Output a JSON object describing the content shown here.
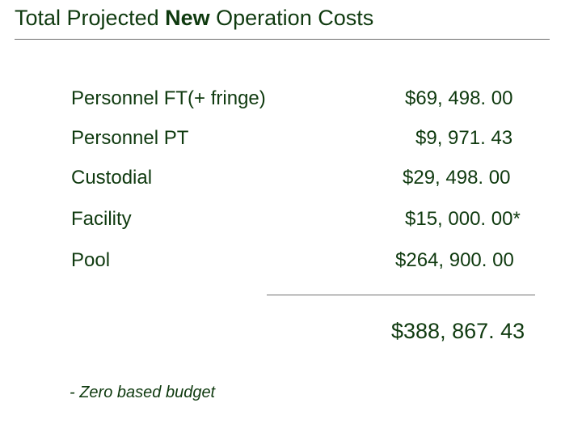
{
  "title": {
    "prefix": "Total Projected ",
    "emphasis": "New",
    "suffix": " Operation Costs"
  },
  "items": [
    {
      "label": "Personnel  FT(+ fringe)",
      "amount": "$69, 498. 00"
    },
    {
      "label": "Personnel  PT",
      "amount": "$9, 971. 43"
    },
    {
      "label": "Custodial",
      "amount": "$29, 498. 00"
    },
    {
      "label": "Facility",
      "amount": "$15, 000. 00*"
    },
    {
      "label": "Pool",
      "amount": "$264, 900. 00"
    }
  ],
  "total": "$388, 867. 43",
  "footnote": "- Zero based budget",
  "colors": {
    "text": "#0f3a0f",
    "rule": "#707070",
    "background": "#ffffff"
  }
}
